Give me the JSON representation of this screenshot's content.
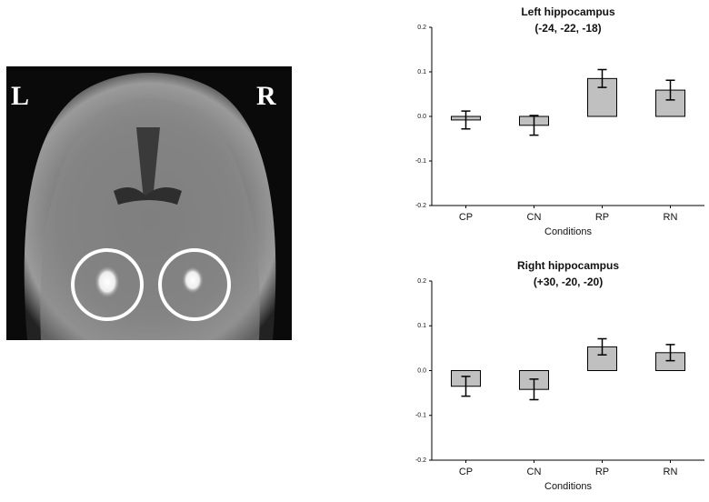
{
  "image": {
    "left_label": "L",
    "right_label": "R"
  },
  "chart_data": [
    {
      "type": "bar",
      "title": "Left hippocampus",
      "subtitle": "(-24, -22, -18)",
      "x_label": "Conditions",
      "categories": [
        "CP",
        "CN",
        "RP",
        "RN"
      ],
      "values": [
        -0.008,
        -0.02,
        0.085,
        0.059
      ],
      "errors": [
        0.02,
        0.022,
        0.02,
        0.022
      ],
      "color": "#c0c0c0",
      "ylim": [
        -0.2,
        0.2
      ],
      "yticks": [
        -0.2,
        -0.1,
        {
          "value": 0,
          "label": "0.0"
        },
        0.1,
        0.2
      ]
    },
    {
      "type": "bar",
      "title": "Right hippocampus",
      "subtitle": "(+30, -20, -20)",
      "x_label": "Conditions",
      "categories": [
        "CP",
        "CN",
        "RP",
        "RN"
      ],
      "values": [
        -0.035,
        -0.042,
        0.053,
        0.04
      ],
      "errors": [
        0.022,
        0.023,
        0.018,
        0.018
      ],
      "color": "#c0c0c0",
      "ylim": [
        -0.2,
        0.2
      ],
      "yticks": [
        -0.2,
        -0.1,
        {
          "value": 0,
          "label": "0.0"
        },
        0.1,
        0.2
      ]
    }
  ]
}
